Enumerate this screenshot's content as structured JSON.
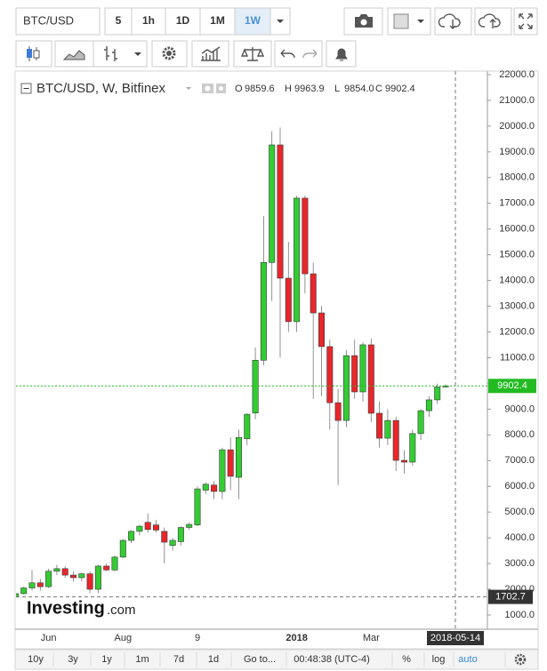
{
  "toolbar": {
    "symbol": "BTC/USD",
    "intervals": [
      "5",
      "1h",
      "1D",
      "1M",
      "1W"
    ],
    "active": "1W"
  },
  "chart_data": {
    "type": "candlestick",
    "legend": "BTC/USD, W, Bitfinex",
    "ohlc_header": [
      {
        "label": "O",
        "value": "9859.6"
      },
      {
        "label": "H",
        "value": "9963.9"
      },
      {
        "label": "L",
        "value": "9854.0"
      },
      {
        "label": "C",
        "value": "9902.4"
      }
    ],
    "categories": [
      null,
      null,
      null,
      null,
      "Jun",
      null,
      null,
      null,
      null,
      null,
      null,
      null,
      null,
      "Aug",
      null,
      null,
      null,
      null,
      null,
      null,
      null,
      null,
      "9",
      null,
      null,
      null,
      null,
      null,
      null,
      null,
      null,
      null,
      null,
      null,
      "2018",
      null,
      null,
      null,
      null,
      null,
      null,
      null,
      null,
      "Mar",
      null,
      null,
      null,
      null,
      null,
      null,
      null,
      null,
      null
    ],
    "ohlc": [
      [
        1700,
        1850,
        1690,
        1830
      ],
      [
        1830,
        2100,
        1800,
        2050
      ],
      [
        2050,
        2750,
        1950,
        2250
      ],
      [
        2250,
        2400,
        1950,
        2100
      ],
      [
        2100,
        2800,
        2050,
        2700
      ],
      [
        2700,
        2950,
        2550,
        2800
      ],
      [
        2800,
        2900,
        2450,
        2550
      ],
      [
        2550,
        2700,
        2300,
        2450
      ],
      [
        2450,
        2650,
        2300,
        2600
      ],
      [
        2600,
        2700,
        1850,
        2000
      ],
      [
        2000,
        2950,
        1850,
        2900
      ],
      [
        2900,
        3000,
        2700,
        2750
      ],
      [
        2750,
        3300,
        2700,
        3250
      ],
      [
        3250,
        3950,
        3200,
        3900
      ],
      [
        3900,
        4300,
        3800,
        4250
      ],
      [
        4250,
        4500,
        4100,
        4450
      ],
      [
        4600,
        4950,
        4200,
        4320
      ],
      [
        4500,
        4700,
        4200,
        4300
      ],
      [
        4250,
        4400,
        3000,
        3830
      ],
      [
        3700,
        4000,
        3500,
        3900
      ],
      [
        3850,
        4450,
        3700,
        4400
      ],
      [
        4400,
        4600,
        4300,
        4520
      ],
      [
        4500,
        6000,
        4450,
        5900
      ],
      [
        5850,
        6150,
        5700,
        6080
      ],
      [
        6050,
        6200,
        5500,
        5800
      ],
      [
        5800,
        7500,
        5500,
        7420
      ],
      [
        7420,
        7900,
        5850,
        6390
      ],
      [
        6350,
        8200,
        5500,
        7900
      ],
      [
        7850,
        8850,
        7600,
        8800
      ],
      [
        8850,
        11400,
        8600,
        10900
      ],
      [
        10900,
        16500,
        10700,
        14700
      ],
      [
        14700,
        19800,
        13200,
        19270
      ],
      [
        19270,
        19950,
        11000,
        14090
      ],
      [
        14090,
        15500,
        12000,
        12400
      ],
      [
        12400,
        17300,
        12000,
        17200
      ],
      [
        17200,
        17300,
        13500,
        14260
      ],
      [
        14260,
        14700,
        9400,
        12740
      ],
      [
        12740,
        13000,
        9500,
        11430
      ],
      [
        11430,
        11700,
        8200,
        9250
      ],
      [
        9250,
        9800,
        6050,
        8560
      ],
      [
        8560,
        11300,
        8300,
        11080
      ],
      [
        11080,
        11700,
        9400,
        9670
      ],
      [
        9670,
        11600,
        9300,
        11500
      ],
      [
        11500,
        11750,
        8500,
        8840
      ],
      [
        8840,
        9300,
        7500,
        7870
      ],
      [
        7870,
        9000,
        7600,
        8560
      ],
      [
        8560,
        8700,
        6600,
        7010
      ],
      [
        7010,
        7400,
        6500,
        6940
      ],
      [
        6940,
        8200,
        6800,
        8050
      ],
      [
        8050,
        9000,
        7800,
        8940
      ],
      [
        8940,
        9500,
        8700,
        9360
      ],
      [
        9360,
        9990,
        9200,
        9860
      ],
      [
        9859.6,
        9963.9,
        9854.0,
        9902.4
      ]
    ],
    "up_color": "#33cc33",
    "down_color": "#e8262b",
    "ylim": [
      446,
      22138
    ],
    "yticks": [
      {
        "value": 1000,
        "label": "1000.0"
      },
      {
        "value": 2000,
        "label": "2000.0"
      },
      {
        "value": 3000,
        "label": "3000.0"
      },
      {
        "value": 4000,
        "label": "4000.0"
      },
      {
        "value": 5000,
        "label": "5000.0"
      },
      {
        "value": 6000,
        "label": "6000.0"
      },
      {
        "value": 7000,
        "label": "7000.0"
      },
      {
        "value": 8000,
        "label": "8000.0"
      },
      {
        "value": 9000,
        "label": "9000.0"
      },
      {
        "value": 10000,
        "label": "10000.0"
      },
      {
        "value": 11000,
        "label": "11000.0"
      },
      {
        "value": 12000,
        "label": "12000.0"
      },
      {
        "value": 13000,
        "label": "13000.0"
      },
      {
        "value": 14000,
        "label": "14000.0"
      },
      {
        "value": 15000,
        "label": "15000.0"
      },
      {
        "value": 16000,
        "label": "16000.0"
      },
      {
        "value": 17000,
        "label": "17000.0"
      },
      {
        "value": 18000,
        "label": "18000.0"
      },
      {
        "value": 19000,
        "label": "19000.0"
      },
      {
        "value": 20000,
        "label": "20000.0"
      },
      {
        "value": 21000,
        "label": "21000.0"
      },
      {
        "value": 22000,
        "label": "22000.0"
      }
    ],
    "grid": false,
    "last_price": 9902.4,
    "last_price_color": "#22bb22",
    "crosshair": {
      "date": "2018-05-14",
      "price": 1702.7
    },
    "watermark": {
      "brand": "Investing",
      "suffix": ".com"
    }
  },
  "bottom_bar": {
    "ranges": [
      "10y",
      "3y",
      "1y",
      "1m",
      "7d",
      "1d"
    ],
    "goto": "Go to...",
    "clock": "00:48:38 (UTC-4)",
    "options": [
      "%",
      "log",
      "auto"
    ],
    "active_option": "auto"
  }
}
